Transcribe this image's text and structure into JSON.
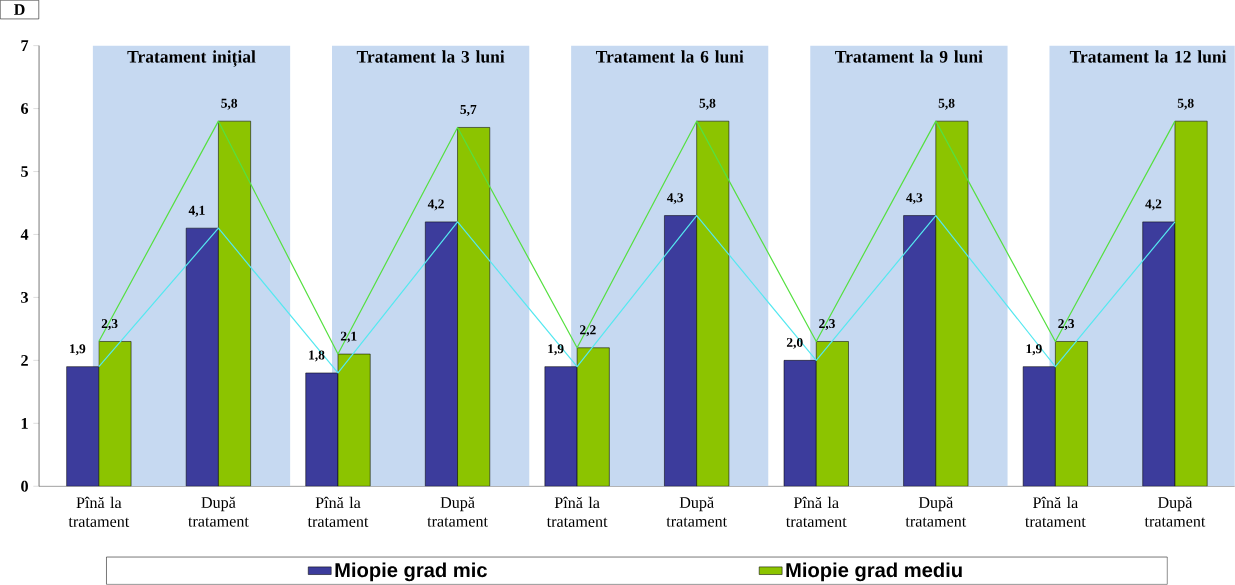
{
  "chart_data": {
    "type": "bar",
    "ylabel": "D",
    "categories": [
      "Pînă la tratament",
      "După tratament",
      "Pînă la tratament",
      "După tratament",
      "Pînă la tratament",
      "După tratament",
      "Pînă la tratament",
      "După tratament",
      "Pînă la tratament",
      "După tratament"
    ],
    "series": [
      {
        "name": "Miopie grad mic",
        "color": "#3c3c9c",
        "values": [
          1.9,
          4.1,
          1.8,
          4.2,
          1.9,
          4.3,
          2.0,
          4.3,
          1.9,
          4.2
        ],
        "value_labels": [
          "1,9",
          "4,1",
          "1,8",
          "4,2",
          "1,9",
          "4,3",
          "2,0",
          "4,3",
          "1,9",
          "4,2"
        ]
      },
      {
        "name": "Miopie grad mediu",
        "color": "#8cc400",
        "values": [
          2.3,
          5.8,
          2.1,
          5.7,
          2.2,
          5.8,
          2.3,
          5.8,
          2.3,
          5.8
        ],
        "value_labels": [
          "2,3",
          "5,8",
          "2,1",
          "5,7",
          "2,2",
          "5,8",
          "2,3",
          "5,8",
          "2,3",
          "5,8"
        ]
      },
      {
        "type": "line",
        "color": "#55e8f0",
        "values": [
          1.9,
          4.1,
          1.8,
          4.2,
          1.9,
          4.3,
          2.0,
          4.3,
          1.9,
          4.2
        ]
      },
      {
        "type": "line",
        "color": "#55e040",
        "values": [
          2.3,
          5.8,
          2.1,
          5.7,
          2.2,
          5.8,
          2.3,
          5.8,
          2.3,
          5.8
        ]
      }
    ],
    "ylim": [
      0,
      7
    ],
    "yticks": [
      0,
      1,
      2,
      3,
      4,
      5,
      6,
      7
    ],
    "annotations": [
      "Tratament inițial",
      "Tratament la 3 luni",
      "Tratament la 6 luni",
      "Tratament la 9 luni",
      "Tratament la 12 luni"
    ],
    "legend": "bottom",
    "marker": "none"
  }
}
